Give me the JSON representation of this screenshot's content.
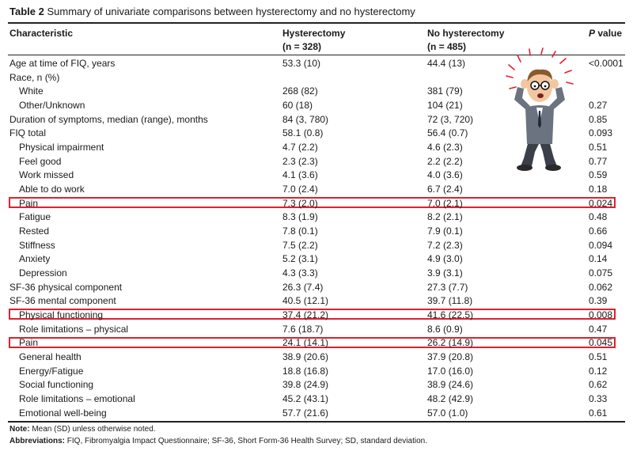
{
  "title": {
    "label": "Table 2",
    "text": "Summary of univariate comparisons between hysterectomy and no hysterectomy"
  },
  "headers": {
    "characteristic": "Characteristic",
    "hyst": "Hysterectomy",
    "hyst_n": "(n = 328)",
    "nohyst": "No hysterectomy",
    "nohyst_n": "(n = 485)",
    "pvalue_p": "P",
    "pvalue_rest": " value"
  },
  "rows": [
    {
      "label": "Age at time of FIQ, years",
      "hyst": "53.3 (10)",
      "nohyst": "44.4 (13)",
      "p": "<0.0001",
      "indent": false,
      "highlight": false
    },
    {
      "label": "Race, n (%)",
      "hyst": "",
      "nohyst": "",
      "p": "",
      "indent": false,
      "highlight": false
    },
    {
      "label": "White",
      "hyst": "268 (82)",
      "nohyst": "381 (79)",
      "p": "",
      "indent": true,
      "highlight": false
    },
    {
      "label": "Other/Unknown",
      "hyst": "60 (18)",
      "nohyst": "104 (21)",
      "p": "0.27",
      "indent": true,
      "highlight": false
    },
    {
      "label": "Duration of symptoms, median (range), months",
      "hyst": "84 (3, 780)",
      "nohyst": "72 (3, 720)",
      "p": "0.85",
      "indent": false,
      "highlight": false
    },
    {
      "label": "FIQ total",
      "hyst": "58.1 (0.8)",
      "nohyst": "56.4 (0.7)",
      "p": "0.093",
      "indent": false,
      "highlight": false
    },
    {
      "label": "Physical impairment",
      "hyst": "4.7 (2.2)",
      "nohyst": "4.6 (2.3)",
      "p": "0.51",
      "indent": true,
      "highlight": false
    },
    {
      "label": "Feel good",
      "hyst": "2.3 (2.3)",
      "nohyst": "2.2 (2.2)",
      "p": "0.77",
      "indent": true,
      "highlight": false
    },
    {
      "label": "Work missed",
      "hyst": "4.1 (3.6)",
      "nohyst": "4.0 (3.6)",
      "p": "0.59",
      "indent": true,
      "highlight": false
    },
    {
      "label": "Able to do work",
      "hyst": "7.0 (2.4)",
      "nohyst": "6.7 (2.4)",
      "p": "0.18",
      "indent": true,
      "highlight": false
    },
    {
      "label": "Pain",
      "hyst": "7.3 (2.0)",
      "nohyst": "7.0 (2.1)",
      "p": "0.024",
      "indent": true,
      "highlight": true
    },
    {
      "label": "Fatigue",
      "hyst": "8.3 (1.9)",
      "nohyst": "8.2 (2.1)",
      "p": "0.48",
      "indent": true,
      "highlight": false
    },
    {
      "label": "Rested",
      "hyst": "7.8 (0.1)",
      "nohyst": "7.9 (0.1)",
      "p": "0.66",
      "indent": true,
      "highlight": false
    },
    {
      "label": "Stiffness",
      "hyst": "7.5 (2.2)",
      "nohyst": "7.2 (2.3)",
      "p": "0.094",
      "indent": true,
      "highlight": false
    },
    {
      "label": "Anxiety",
      "hyst": "5.2 (3.1)",
      "nohyst": "4.9 (3.0)",
      "p": "0.14",
      "indent": true,
      "highlight": false
    },
    {
      "label": "Depression",
      "hyst": "4.3 (3.3)",
      "nohyst": "3.9 (3.1)",
      "p": "0.075",
      "indent": true,
      "highlight": false
    },
    {
      "label": "SF-36 physical component",
      "hyst": "26.3 (7.4)",
      "nohyst": "27.3 (7.7)",
      "p": "0.062",
      "indent": false,
      "highlight": false
    },
    {
      "label": "SF-36 mental component",
      "hyst": "40.5 (12.1)",
      "nohyst": "39.7 (11.8)",
      "p": "0.39",
      "indent": false,
      "highlight": false
    },
    {
      "label": "Physical functioning",
      "hyst": "37.4 (21.2)",
      "nohyst": "41.6 (22.5)",
      "p": "0.008",
      "indent": true,
      "highlight": true
    },
    {
      "label": "Role limitations – physical",
      "hyst": "7.6 (18.7)",
      "nohyst": "8.6 (0.9)",
      "p": "0.47",
      "indent": true,
      "highlight": false
    },
    {
      "label": "Pain",
      "hyst": "24.1 (14.1)",
      "nohyst": "26.2 (14.9)",
      "p": "0.045",
      "indent": true,
      "highlight": true
    },
    {
      "label": "General health",
      "hyst": "38.9 (20.6)",
      "nohyst": "37.9 (20.8)",
      "p": "0.51",
      "indent": true,
      "highlight": false
    },
    {
      "label": "Energy/Fatigue",
      "hyst": "18.8 (16.8)",
      "nohyst": "17.0 (16.0)",
      "p": "0.12",
      "indent": true,
      "highlight": false
    },
    {
      "label": "Social functioning",
      "hyst": "39.8 (24.9)",
      "nohyst": "38.9 (24.6)",
      "p": "0.62",
      "indent": true,
      "highlight": false
    },
    {
      "label": "Role limitations – emotional",
      "hyst": "45.2 (43.1)",
      "nohyst": "48.2 (42.9)",
      "p": "0.33",
      "indent": true,
      "highlight": false
    },
    {
      "label": "Emotional well-being",
      "hyst": "57.7 (21.6)",
      "nohyst": "57.0 (1.0)",
      "p": "0.61",
      "indent": true,
      "highlight": false
    }
  ],
  "notes": {
    "note_label": "Note:",
    "note_text": " Mean (SD) unless otherwise noted.",
    "abbr_label": "Abbreviations:",
    "abbr_text": " FIQ, Fibromyalgia Impact Questionnaire; SF-36, Short Form-36 Health Survey; SD, standard deviation."
  },
  "colors": {
    "highlight": "#e0202c",
    "rule": "#222222"
  },
  "illustration": "stressed-man-holding-head-icon"
}
